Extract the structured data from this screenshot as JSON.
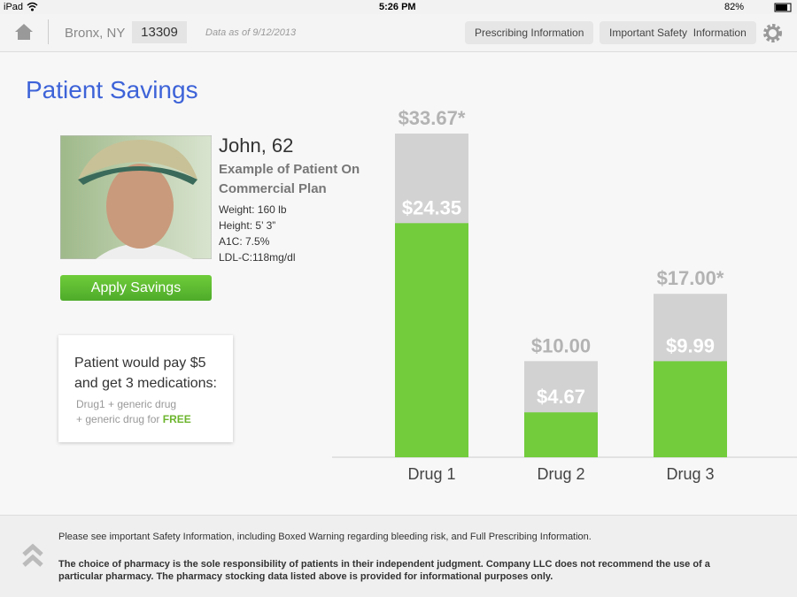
{
  "status_bar": {
    "device": "iPad",
    "time": "5:26 PM",
    "battery": "82%"
  },
  "nav": {
    "location": "Bronx, NY",
    "zip": "13309",
    "data_date": "Data as of 9/12/2013",
    "buttons": [
      "Prescribing Information",
      "Important Safety  Information"
    ]
  },
  "page_title": "Patient Savings",
  "patient": {
    "name": "John, 62",
    "plan": "Example of Patient On Commercial Plan",
    "details": [
      "Weight: 160 lb",
      "Height: 5’ 3”",
      "A1C: 7.5%",
      "LDL-C:118mg/dl"
    ],
    "button": "Apply Savings"
  },
  "offer": {
    "headline": "Patient would pay $5 and get 3 medications:",
    "line1": "Drug1 + generic drug",
    "line2": "+ generic drug for",
    "free": "FREE"
  },
  "chart_data": {
    "type": "bar",
    "categories": [
      "Drug 1",
      "Drug 2",
      "Drug 3"
    ],
    "series": [
      {
        "color": "#d2d2d2",
        "values": [
          33.67,
          10,
          17
        ],
        "value_labels": [
          "$33.67*",
          "$10.00",
          "$17.00*"
        ]
      },
      {
        "color": "#72cc3c",
        "values": [
          24.35,
          4.67,
          9.99
        ],
        "value_labels": [
          "$24.35",
          "$4.67",
          "$9.99"
        ]
      }
    ]
  },
  "footer": {
    "note": "Please see important Safety Information, including Boxed Warning regarding bleeding risk, and Full Prescribing Information.",
    "disclaimer": "The choice of pharmacy is the sole responsibility of patients in their independent judgment. Company LLC does not recommend the use of a particular pharmacy. The pharmacy stocking data listed above is provided for informational purposes only."
  }
}
